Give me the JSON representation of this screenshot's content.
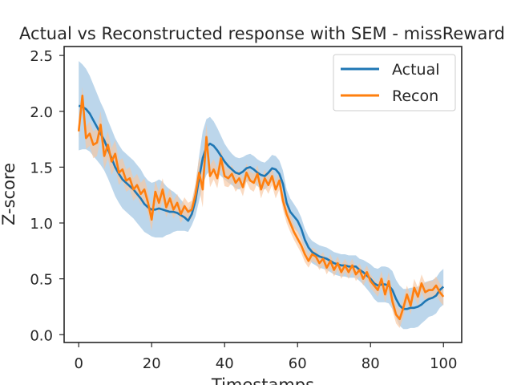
{
  "chart_data": {
    "type": "line",
    "title": "Actual vs Reconstructed response with SEM - missReward",
    "xlabel": "Timestamps",
    "ylabel": "Z-score",
    "xlim": [
      -4,
      105
    ],
    "ylim": [
      -0.07,
      2.58
    ],
    "xticks": [
      0,
      20,
      40,
      60,
      80,
      100
    ],
    "yticks": [
      0.0,
      0.5,
      1.0,
      1.5,
      2.0,
      2.5
    ],
    "xtick_labels": [
      "0",
      "20",
      "40",
      "60",
      "80",
      "100"
    ],
    "ytick_labels": [
      "0.0",
      "0.5",
      "1.0",
      "1.5",
      "2.0",
      "2.5"
    ],
    "grid": false,
    "legend_position": "top-right",
    "series": [
      {
        "name": "Actual",
        "color": "#1f77b4",
        "band_color": "#9fc4e3",
        "x": [
          0,
          1,
          2,
          3,
          4,
          5,
          6,
          7,
          8,
          9,
          10,
          11,
          12,
          13,
          14,
          15,
          16,
          17,
          18,
          19,
          20,
          21,
          22,
          23,
          24,
          25,
          26,
          27,
          28,
          29,
          30,
          31,
          32,
          33,
          34,
          35,
          36,
          37,
          38,
          39,
          40,
          41,
          42,
          43,
          44,
          45,
          46,
          47,
          48,
          49,
          50,
          51,
          52,
          53,
          54,
          55,
          56,
          57,
          58,
          59,
          60,
          61,
          62,
          63,
          64,
          65,
          66,
          67,
          68,
          69,
          70,
          71,
          72,
          73,
          74,
          75,
          76,
          77,
          78,
          79,
          80,
          81,
          82,
          83,
          84,
          85,
          86,
          87,
          88,
          89,
          90,
          91,
          92,
          93,
          94,
          95,
          96,
          97,
          98,
          99,
          100
        ],
        "y": [
          2.05,
          2.04,
          2.02,
          1.98,
          1.92,
          1.86,
          1.8,
          1.74,
          1.66,
          1.58,
          1.5,
          1.44,
          1.39,
          1.36,
          1.33,
          1.3,
          1.26,
          1.22,
          1.17,
          1.14,
          1.12,
          1.12,
          1.13,
          1.12,
          1.11,
          1.1,
          1.1,
          1.09,
          1.07,
          1.05,
          1.02,
          1.08,
          1.2,
          1.4,
          1.58,
          1.68,
          1.71,
          1.69,
          1.65,
          1.6,
          1.55,
          1.51,
          1.48,
          1.45,
          1.44,
          1.46,
          1.49,
          1.5,
          1.48,
          1.45,
          1.43,
          1.42,
          1.45,
          1.49,
          1.48,
          1.44,
          1.35,
          1.18,
          1.1,
          1.06,
          1.02,
          0.95,
          0.85,
          0.78,
          0.74,
          0.72,
          0.7,
          0.69,
          0.68,
          0.66,
          0.64,
          0.63,
          0.62,
          0.62,
          0.61,
          0.61,
          0.61,
          0.58,
          0.56,
          0.53,
          0.5,
          0.46,
          0.44,
          0.45,
          0.45,
          0.44,
          0.4,
          0.32,
          0.26,
          0.23,
          0.23,
          0.24,
          0.24,
          0.25,
          0.27,
          0.3,
          0.32,
          0.33,
          0.35,
          0.4,
          0.43
        ],
        "sem": [
          0.4,
          0.38,
          0.36,
          0.34,
          0.32,
          0.3,
          0.28,
          0.27,
          0.26,
          0.26,
          0.26,
          0.26,
          0.26,
          0.26,
          0.26,
          0.26,
          0.26,
          0.26,
          0.25,
          0.24,
          0.24,
          0.25,
          0.26,
          0.25,
          0.22,
          0.2,
          0.18,
          0.16,
          0.14,
          0.12,
          0.1,
          0.1,
          0.14,
          0.2,
          0.24,
          0.25,
          0.24,
          0.22,
          0.2,
          0.18,
          0.16,
          0.15,
          0.14,
          0.14,
          0.14,
          0.13,
          0.12,
          0.12,
          0.12,
          0.12,
          0.12,
          0.12,
          0.12,
          0.12,
          0.12,
          0.12,
          0.12,
          0.12,
          0.12,
          0.11,
          0.1,
          0.1,
          0.1,
          0.1,
          0.1,
          0.1,
          0.1,
          0.1,
          0.1,
          0.1,
          0.1,
          0.1,
          0.1,
          0.1,
          0.1,
          0.1,
          0.1,
          0.1,
          0.11,
          0.12,
          0.13,
          0.14,
          0.15,
          0.16,
          0.16,
          0.16,
          0.17,
          0.17,
          0.18,
          0.18,
          0.18,
          0.18,
          0.18,
          0.18,
          0.17,
          0.17,
          0.16,
          0.16,
          0.16,
          0.16,
          0.16
        ]
      },
      {
        "name": "Recon",
        "color": "#ff7f0e",
        "band_color": "#f7c6a0",
        "x": [
          0,
          1,
          2,
          3,
          4,
          5,
          6,
          7,
          8,
          9,
          10,
          11,
          12,
          13,
          14,
          15,
          16,
          17,
          18,
          19,
          20,
          21,
          22,
          23,
          24,
          25,
          26,
          27,
          28,
          29,
          30,
          31,
          32,
          33,
          34,
          35,
          36,
          37,
          38,
          39,
          40,
          41,
          42,
          43,
          44,
          45,
          46,
          47,
          48,
          49,
          50,
          51,
          52,
          53,
          54,
          55,
          56,
          57,
          58,
          59,
          60,
          61,
          62,
          63,
          64,
          65,
          66,
          67,
          68,
          69,
          70,
          71,
          72,
          73,
          74,
          75,
          76,
          77,
          78,
          79,
          80,
          81,
          82,
          83,
          84,
          85,
          86,
          87,
          88,
          89,
          90,
          91,
          92,
          93,
          94,
          95,
          96,
          97,
          98,
          99,
          100
        ],
        "y": [
          1.82,
          2.14,
          1.76,
          1.8,
          1.7,
          1.72,
          1.88,
          1.6,
          1.7,
          1.55,
          1.62,
          1.45,
          1.48,
          1.38,
          1.4,
          1.3,
          1.34,
          1.26,
          1.3,
          1.18,
          1.03,
          1.28,
          1.18,
          1.3,
          1.14,
          1.22,
          1.12,
          1.18,
          1.08,
          1.15,
          1.1,
          1.12,
          1.25,
          1.45,
          1.3,
          1.77,
          1.42,
          1.48,
          1.4,
          1.58,
          1.42,
          1.4,
          1.44,
          1.36,
          1.4,
          1.32,
          1.45,
          1.38,
          1.36,
          1.44,
          1.3,
          1.4,
          1.34,
          1.42,
          1.3,
          1.38,
          1.2,
          1.08,
          1.0,
          0.92,
          0.86,
          0.8,
          0.72,
          0.66,
          0.72,
          0.7,
          0.64,
          0.68,
          0.6,
          0.66,
          0.58,
          0.64,
          0.56,
          0.62,
          0.56,
          0.62,
          0.54,
          0.58,
          0.5,
          0.56,
          0.48,
          0.44,
          0.4,
          0.5,
          0.36,
          0.48,
          0.3,
          0.18,
          0.14,
          0.24,
          0.36,
          0.26,
          0.42,
          0.34,
          0.46,
          0.38,
          0.4,
          0.4,
          0.44,
          0.38,
          0.34
        ],
        "sem": [
          0.06,
          0.08,
          0.1,
          0.11,
          0.12,
          0.12,
          0.12,
          0.12,
          0.12,
          0.12,
          0.12,
          0.11,
          0.1,
          0.1,
          0.1,
          0.1,
          0.1,
          0.1,
          0.1,
          0.1,
          0.1,
          0.1,
          0.1,
          0.1,
          0.09,
          0.09,
          0.08,
          0.08,
          0.08,
          0.08,
          0.08,
          0.08,
          0.1,
          0.14,
          0.16,
          0.12,
          0.1,
          0.09,
          0.09,
          0.09,
          0.09,
          0.08,
          0.08,
          0.08,
          0.08,
          0.08,
          0.08,
          0.08,
          0.08,
          0.08,
          0.08,
          0.08,
          0.08,
          0.08,
          0.08,
          0.08,
          0.08,
          0.08,
          0.08,
          0.07,
          0.07,
          0.07,
          0.07,
          0.06,
          0.06,
          0.06,
          0.06,
          0.06,
          0.06,
          0.06,
          0.06,
          0.06,
          0.06,
          0.06,
          0.06,
          0.06,
          0.06,
          0.06,
          0.06,
          0.06,
          0.06,
          0.06,
          0.06,
          0.07,
          0.07,
          0.08,
          0.08,
          0.08,
          0.08,
          0.08,
          0.08,
          0.08,
          0.08,
          0.08,
          0.08,
          0.08,
          0.08,
          0.08,
          0.08,
          0.08,
          0.08
        ]
      }
    ]
  }
}
